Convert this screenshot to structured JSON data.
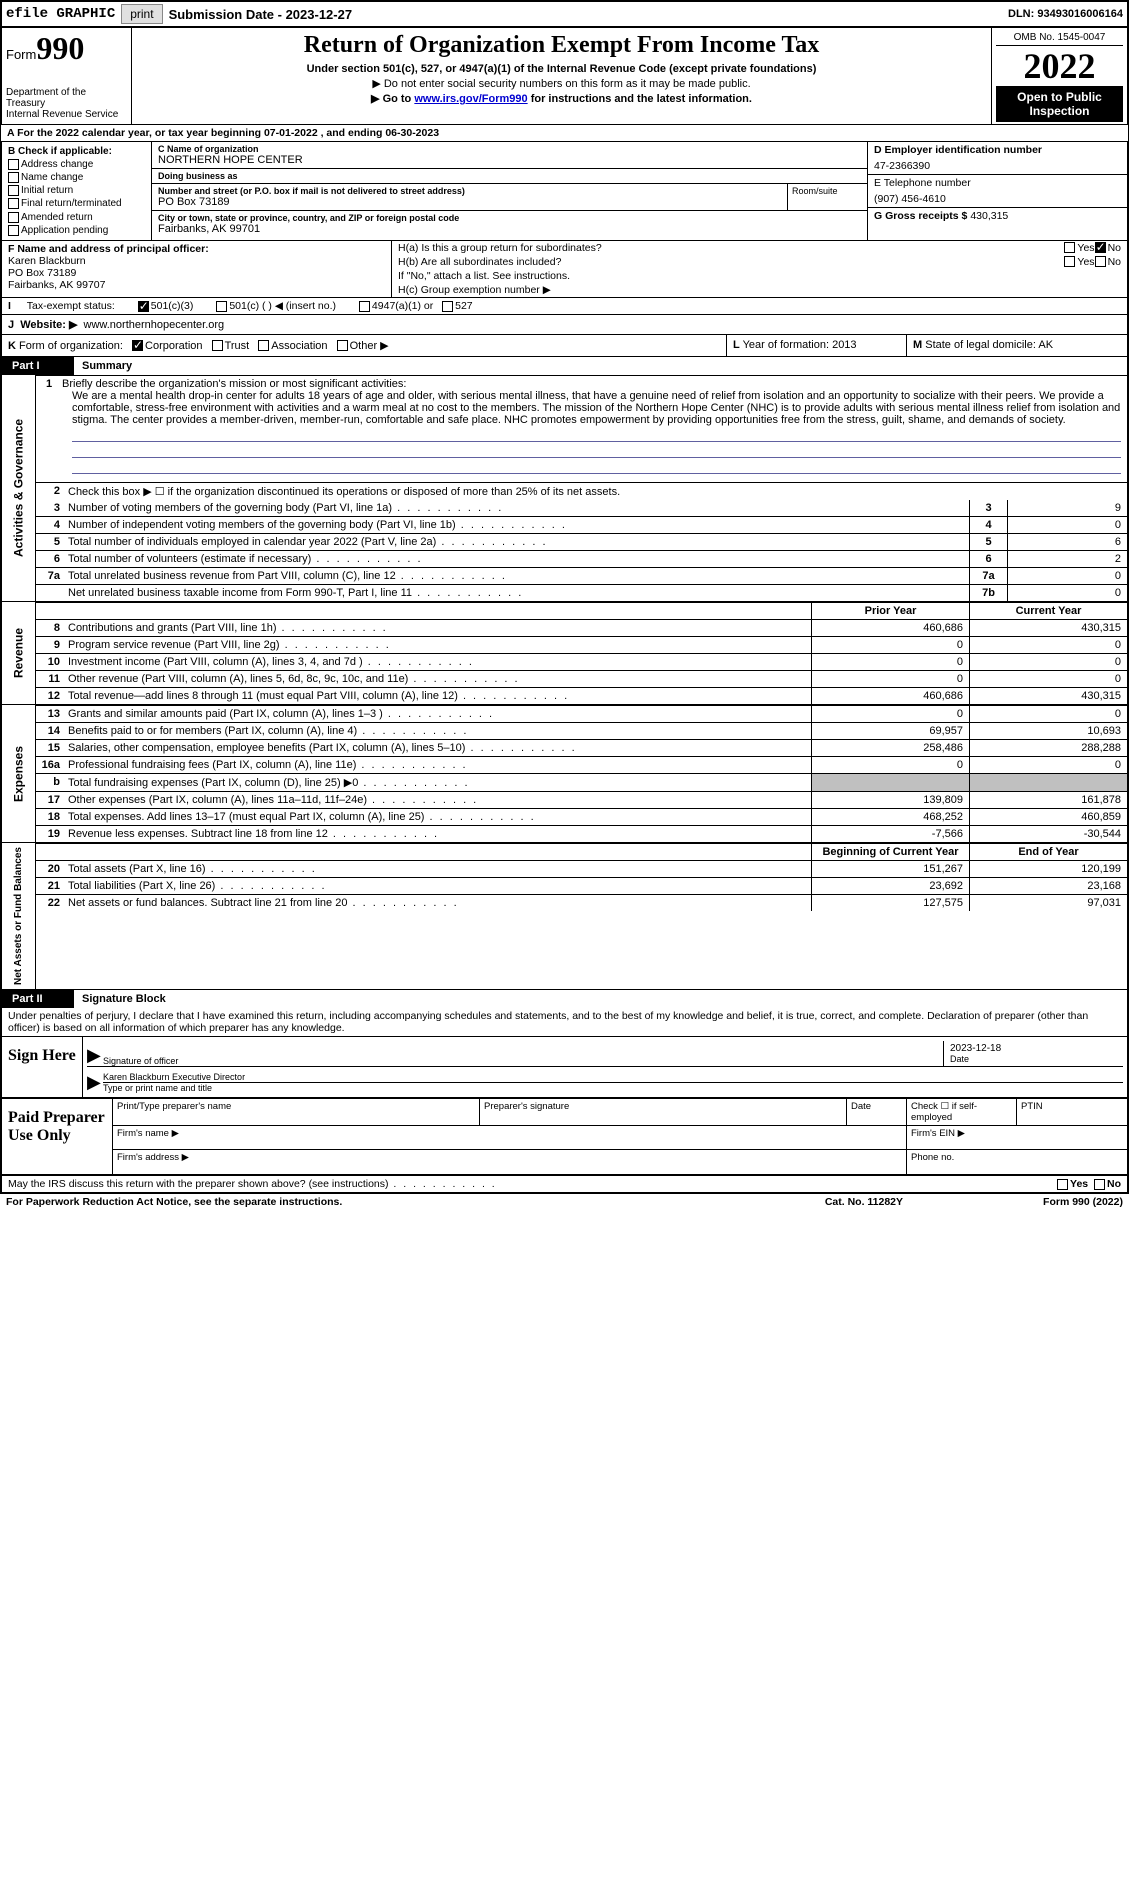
{
  "topbar": {
    "efile": "efile GRAPHIC",
    "print": "print",
    "submission": "Submission Date - 2023-12-27",
    "dln": "DLN: 93493016006164"
  },
  "header": {
    "form_label": "Form",
    "form_num": "990",
    "dept": "Department of the Treasury",
    "irs": "Internal Revenue Service",
    "title": "Return of Organization Exempt From Income Tax",
    "sub1": "Under section 501(c), 527, or 4947(a)(1) of the Internal Revenue Code (except private foundations)",
    "sub2": "▶ Do not enter social security numbers on this form as it may be made public.",
    "sub3_pre": "▶ Go to ",
    "sub3_link": "www.irs.gov/Form990",
    "sub3_post": " for instructions and the latest information.",
    "omb": "OMB No. 1545-0047",
    "year": "2022",
    "inspect": "Open to Public Inspection"
  },
  "rowA": "A   For the 2022 calendar year, or tax year beginning 07-01-2022   , and ending 06-30-2023",
  "colB": {
    "label": "B Check if applicable:",
    "opts": [
      "Address change",
      "Name change",
      "Initial return",
      "Final return/terminated",
      "Amended return",
      "Application pending"
    ]
  },
  "colC": {
    "name_lbl": "C Name of organization",
    "name": "NORTHERN HOPE CENTER",
    "dba_lbl": "Doing business as",
    "dba": "",
    "street_lbl": "Number and street (or P.O. box if mail is not delivered to street address)",
    "street": "PO Box 73189",
    "room_lbl": "Room/suite",
    "city_lbl": "City or town, state or province, country, and ZIP or foreign postal code",
    "city": "Fairbanks, AK  99701"
  },
  "colD": {
    "d_lbl": "D Employer identification number",
    "ein": "47-2366390",
    "e_lbl": "E Telephone number",
    "phone": "(907) 456-4610",
    "g_lbl": "G Gross receipts $",
    "gross": "430,315"
  },
  "colF": {
    "lbl": "F  Name and address of principal officer:",
    "name": "Karen Blackburn",
    "addr1": "PO Box 73189",
    "addr2": "Fairbanks, AK  99707"
  },
  "colH": {
    "ha": "H(a)  Is this a group return for subordinates?",
    "hb": "H(b)  Are all subordinates included?",
    "hb2": "If \"No,\" attach a list. See instructions.",
    "hc": "H(c)  Group exemption number ▶"
  },
  "rowI": {
    "lbl": "I",
    "txt": "Tax-exempt status:",
    "opt1": "501(c)(3)",
    "opt2": "501(c) (  ) ◀ (insert no.)",
    "opt3": "4947(a)(1) or",
    "opt4": "527"
  },
  "rowJ": {
    "lbl": "J",
    "txt": "Website: ▶",
    "url": "www.northernhopecenter.org"
  },
  "rowK": {
    "lbl": "K",
    "txt": "Form of organization:",
    "opts": [
      "Corporation",
      "Trust",
      "Association",
      "Other ▶"
    ]
  },
  "rowL": {
    "lbl": "L",
    "txt": "Year of formation: 2013"
  },
  "rowM": {
    "lbl": "M",
    "txt": "State of legal domicile: AK"
  },
  "part1": {
    "num": "Part I",
    "title": "Summary",
    "side1": "Activities & Governance",
    "side2": "Revenue",
    "side3": "Expenses",
    "side4": "Net Assets or Fund Balances",
    "line1_lbl": "1",
    "line1_hdr": "Briefly describe the organization's mission or most significant activities:",
    "mission": "We are a mental health drop-in center for adults 18 years of age and older, with serious mental illness, that have a genuine need of relief from isolation and an opportunity to socialize with their peers. We provide a comfortable, stress-free environment with activities and a warm meal at no cost to the members. The mission of the Northern Hope Center (NHC) is to provide adults with serious mental illness relief from isolation and stigma. The center provides a member-driven, member-run, comfortable and safe place. NHC promotes empowerment by providing opportunities free from the stress, guilt, shame, and demands of society.",
    "line2": "Check this box ▶ ☐ if the organization discontinued its operations or disposed of more than 25% of its net assets.",
    "lines_gov": [
      {
        "n": "3",
        "t": "Number of voting members of the governing body (Part VI, line 1a)",
        "b": "3",
        "v": "9"
      },
      {
        "n": "4",
        "t": "Number of independent voting members of the governing body (Part VI, line 1b)",
        "b": "4",
        "v": "0"
      },
      {
        "n": "5",
        "t": "Total number of individuals employed in calendar year 2022 (Part V, line 2a)",
        "b": "5",
        "v": "6"
      },
      {
        "n": "6",
        "t": "Total number of volunteers (estimate if necessary)",
        "b": "6",
        "v": "2"
      },
      {
        "n": "7a",
        "t": "Total unrelated business revenue from Part VIII, column (C), line 12",
        "b": "7a",
        "v": "0"
      },
      {
        "n": "",
        "t": "Net unrelated business taxable income from Form 990-T, Part I, line 11",
        "b": "7b",
        "v": "0"
      }
    ],
    "col_prior": "Prior Year",
    "col_current": "Current Year",
    "lines_rev": [
      {
        "n": "8",
        "t": "Contributions and grants (Part VIII, line 1h)",
        "v1": "460,686",
        "v2": "430,315"
      },
      {
        "n": "9",
        "t": "Program service revenue (Part VIII, line 2g)",
        "v1": "0",
        "v2": "0"
      },
      {
        "n": "10",
        "t": "Investment income (Part VIII, column (A), lines 3, 4, and 7d )",
        "v1": "0",
        "v2": "0"
      },
      {
        "n": "11",
        "t": "Other revenue (Part VIII, column (A), lines 5, 6d, 8c, 9c, 10c, and 11e)",
        "v1": "0",
        "v2": "0"
      },
      {
        "n": "12",
        "t": "Total revenue—add lines 8 through 11 (must equal Part VIII, column (A), line 12)",
        "v1": "460,686",
        "v2": "430,315"
      }
    ],
    "lines_exp": [
      {
        "n": "13",
        "t": "Grants and similar amounts paid (Part IX, column (A), lines 1–3 )",
        "v1": "0",
        "v2": "0"
      },
      {
        "n": "14",
        "t": "Benefits paid to or for members (Part IX, column (A), line 4)",
        "v1": "69,957",
        "v2": "10,693"
      },
      {
        "n": "15",
        "t": "Salaries, other compensation, employee benefits (Part IX, column (A), lines 5–10)",
        "v1": "258,486",
        "v2": "288,288"
      },
      {
        "n": "16a",
        "t": "Professional fundraising fees (Part IX, column (A), line 11e)",
        "v1": "0",
        "v2": "0"
      },
      {
        "n": "b",
        "t": "Total fundraising expenses (Part IX, column (D), line 25) ▶0",
        "v1": "gray",
        "v2": "gray"
      },
      {
        "n": "17",
        "t": "Other expenses (Part IX, column (A), lines 11a–11d, 11f–24e)",
        "v1": "139,809",
        "v2": "161,878"
      },
      {
        "n": "18",
        "t": "Total expenses. Add lines 13–17 (must equal Part IX, column (A), line 25)",
        "v1": "468,252",
        "v2": "460,859"
      },
      {
        "n": "19",
        "t": "Revenue less expenses. Subtract line 18 from line 12",
        "v1": "-7,566",
        "v2": "-30,544"
      }
    ],
    "col_begin": "Beginning of Current Year",
    "col_end": "End of Year",
    "lines_net": [
      {
        "n": "20",
        "t": "Total assets (Part X, line 16)",
        "v1": "151,267",
        "v2": "120,199"
      },
      {
        "n": "21",
        "t": "Total liabilities (Part X, line 26)",
        "v1": "23,692",
        "v2": "23,168"
      },
      {
        "n": "22",
        "t": "Net assets or fund balances. Subtract line 21 from line 20",
        "v1": "127,575",
        "v2": "97,031"
      }
    ]
  },
  "part2": {
    "num": "Part II",
    "title": "Signature Block",
    "decl": "Under penalties of perjury, I declare that I have examined this return, including accompanying schedules and statements, and to the best of my knowledge and belief, it is true, correct, and complete. Declaration of preparer (other than officer) is based on all information of which preparer has any knowledge."
  },
  "sign": {
    "lbl": "Sign Here",
    "r1": "Signature of officer",
    "r1_date": "2023-12-18",
    "r1_date_lbl": "Date",
    "r2_name": "Karen Blackburn Executive Director",
    "r2_lbl": "Type or print name and title"
  },
  "prep": {
    "lbl": "Paid Preparer Use Only",
    "h1": "Print/Type preparer's name",
    "h2": "Preparer's signature",
    "h3": "Date",
    "h4": "Check ☐ if self-employed",
    "h5": "PTIN",
    "firm_name": "Firm's name  ▶",
    "firm_ein": "Firm's EIN ▶",
    "firm_addr": "Firm's address ▶",
    "phone": "Phone no."
  },
  "footer": {
    "discuss": "May the IRS discuss this return with the preparer shown above? (see instructions)",
    "pra": "For Paperwork Reduction Act Notice, see the separate instructions.",
    "cat": "Cat. No. 11282Y",
    "form": "Form 990 (2022)"
  }
}
